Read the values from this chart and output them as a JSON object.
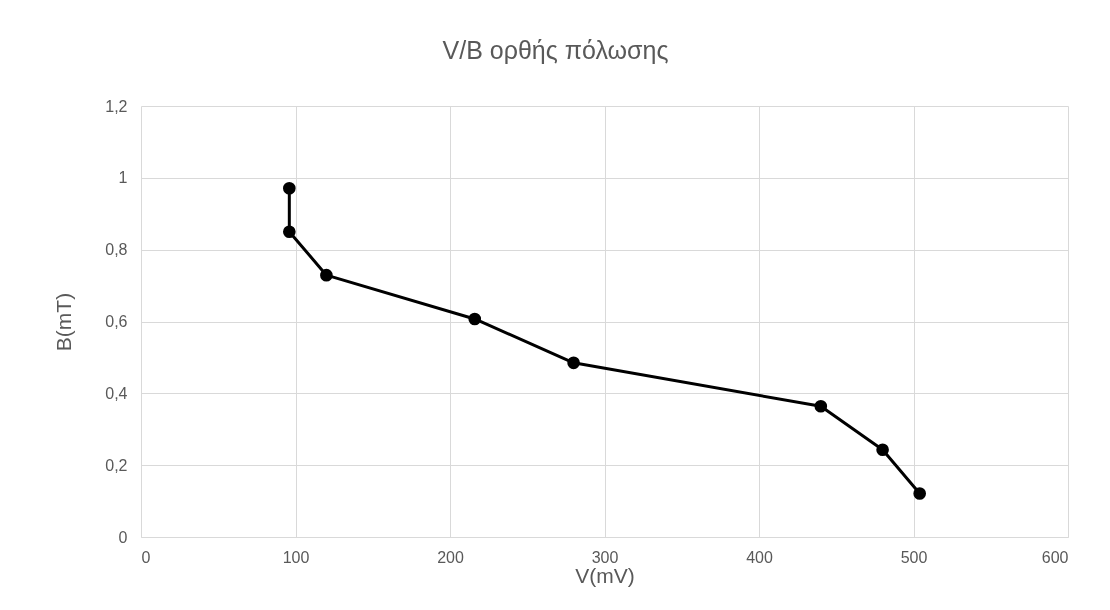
{
  "chart_data": {
    "type": "line",
    "title": "V/B ορθής πόλωσης",
    "xlabel": "V(mV)",
    "ylabel": "B(mT)",
    "x": [
      96,
      96,
      120,
      216,
      280,
      440,
      480,
      504
    ],
    "series": [
      {
        "color": "#000000",
        "values": [
          0.971,
          0.85,
          0.729,
          0.607,
          0.485,
          0.364,
          0.243,
          0.121
        ]
      }
    ],
    "xlim": [
      0,
      600
    ],
    "xticks": [
      0,
      100,
      200,
      300,
      400,
      500,
      600
    ],
    "ylim": [
      0,
      1.2
    ],
    "yticks": [
      0,
      {
        "value": 0.2,
        "label": "0,2"
      },
      {
        "value": 0.4,
        "label": "0,4"
      },
      {
        "value": 0.6,
        "label": "0,6"
      },
      {
        "value": 0.8,
        "label": "0,8"
      },
      1,
      {
        "value": 1.2,
        "label": "1,2"
      }
    ],
    "grid": true,
    "marker": "circle",
    "line_style": "solid"
  }
}
